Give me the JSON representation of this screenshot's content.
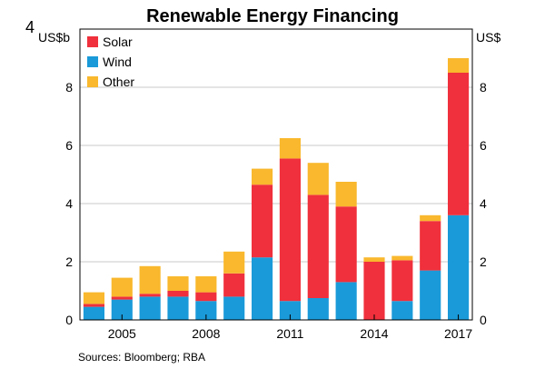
{
  "figure_number": "4",
  "source": "Sources:   Bloomberg; RBA",
  "chart_data": {
    "type": "bar",
    "stacked": true,
    "title": "Renewable Energy Financing",
    "ylabel_left": "US$b",
    "ylabel_right": "US$",
    "ylim": [
      0,
      10
    ],
    "yticks": [
      0,
      2,
      4,
      6,
      8
    ],
    "x": [
      2004,
      2005,
      2006,
      2007,
      2008,
      2009,
      2010,
      2011,
      2012,
      2013,
      2014,
      2015,
      2016,
      2017
    ],
    "xtick_labels": [
      "2005",
      "2008",
      "2011",
      "2014",
      "2017"
    ],
    "xtick_years": [
      2005,
      2008,
      2011,
      2014,
      2017
    ],
    "legend_position": "top-left",
    "grid": true,
    "colors": {
      "Wind": "#1a9ad9",
      "Solar": "#f0303c",
      "Other": "#f9b82d"
    },
    "series": [
      {
        "name": "Wind",
        "values": [
          0.45,
          0.7,
          0.8,
          0.8,
          0.65,
          0.8,
          2.15,
          0.65,
          0.75,
          1.3,
          0.0,
          0.65,
          1.7,
          3.6
        ]
      },
      {
        "name": "Solar",
        "values": [
          0.1,
          0.1,
          0.1,
          0.2,
          0.3,
          0.8,
          2.5,
          4.9,
          3.55,
          2.6,
          2.0,
          1.4,
          1.7,
          4.9
        ]
      },
      {
        "name": "Other",
        "values": [
          0.4,
          0.65,
          0.95,
          0.5,
          0.55,
          0.75,
          0.55,
          0.7,
          1.1,
          0.85,
          0.15,
          0.15,
          0.2,
          0.5
        ]
      }
    ],
    "legend_order": [
      "Solar",
      "Wind",
      "Other"
    ]
  }
}
